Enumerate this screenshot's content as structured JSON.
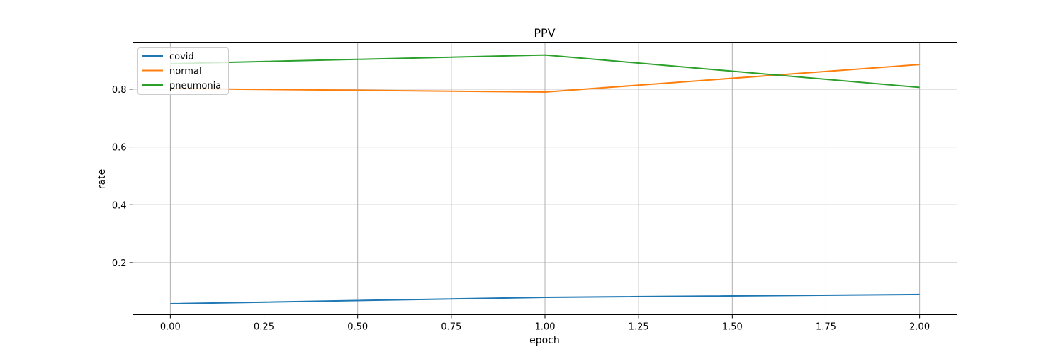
{
  "chart_data": {
    "type": "line",
    "title": "PPV",
    "xlabel": "epoch",
    "ylabel": "rate",
    "x": [
      0,
      1,
      2
    ],
    "xlim": [
      -0.1,
      2.1
    ],
    "ylim": [
      0.02,
      0.96
    ],
    "xticks": [
      0.0,
      0.25,
      0.5,
      0.75,
      1.0,
      1.25,
      1.5,
      1.75,
      2.0
    ],
    "xtick_labels": [
      "0.00",
      "0.25",
      "0.50",
      "0.75",
      "1.00",
      "1.25",
      "1.50",
      "1.75",
      "2.00"
    ],
    "yticks": [
      0.2,
      0.4,
      0.6,
      0.8
    ],
    "ytick_labels": [
      "0.2",
      "0.4",
      "0.6",
      "0.8"
    ],
    "grid": true,
    "legend_position": "top-left",
    "series": [
      {
        "name": "covid",
        "color": "#1f77b4",
        "values": [
          0.058,
          0.08,
          0.09
        ]
      },
      {
        "name": "normal",
        "color": "#ff7f0e",
        "values": [
          0.802,
          0.79,
          0.885
        ]
      },
      {
        "name": "pneumonia",
        "color": "#2ca02c",
        "values": [
          0.888,
          0.918,
          0.806
        ]
      }
    ]
  }
}
